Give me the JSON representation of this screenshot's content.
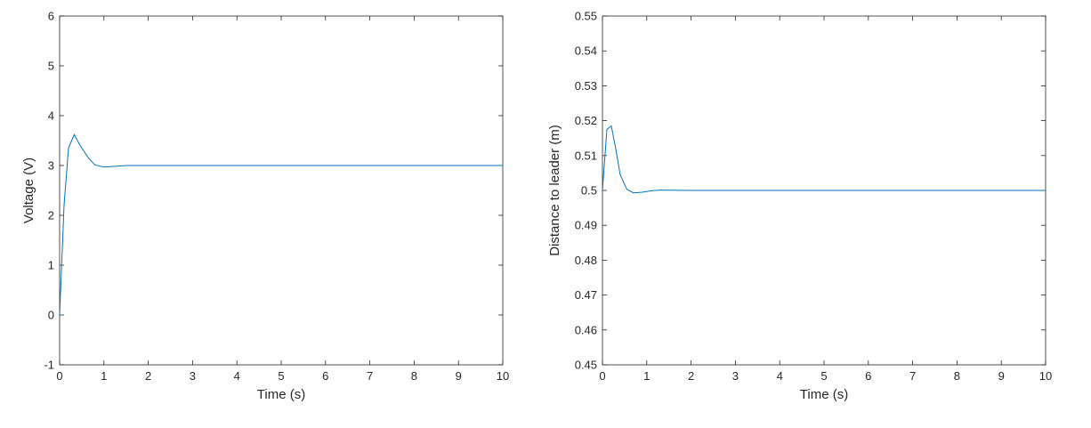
{
  "chart_data": [
    {
      "type": "line",
      "title": "",
      "xlabel": "Time (s)",
      "ylabel": "Voltage (V)",
      "xlim": [
        0,
        10
      ],
      "ylim": [
        -1,
        6
      ],
      "xticks": [
        "0",
        "1",
        "2",
        "3",
        "4",
        "5",
        "6",
        "7",
        "8",
        "9",
        "10"
      ],
      "yticks": [
        "-1",
        "0",
        "1",
        "2",
        "3",
        "4",
        "5",
        "6"
      ],
      "grid": false,
      "color": "#0072BD",
      "series": [
        {
          "x": [
            0,
            0.05,
            0.1,
            0.2,
            0.33,
            0.45,
            0.65,
            0.8,
            1.0,
            1.2,
            1.5,
            2.0,
            3.0,
            5.0,
            10.0
          ],
          "y": [
            0,
            1.1,
            2.2,
            3.35,
            3.62,
            3.42,
            3.15,
            3.01,
            2.97,
            2.98,
            3.0,
            3.0,
            3.0,
            3.0,
            3.0
          ]
        }
      ]
    },
    {
      "type": "line",
      "title": "",
      "xlabel": "Time (s)",
      "ylabel": "Distance to leader (m)",
      "xlim": [
        0,
        10
      ],
      "ylim": [
        0.45,
        0.55
      ],
      "xticks": [
        "0",
        "1",
        "2",
        "3",
        "4",
        "5",
        "6",
        "7",
        "8",
        "9",
        "10"
      ],
      "yticks": [
        "0.45",
        "0.46",
        "0.47",
        "0.48",
        "0.49",
        "0.5",
        "0.51",
        "0.52",
        "0.53",
        "0.54",
        "0.55"
      ],
      "grid": false,
      "color": "#0072BD",
      "series": [
        {
          "x": [
            0,
            0.1,
            0.2,
            0.3,
            0.4,
            0.55,
            0.7,
            0.9,
            1.1,
            1.3,
            2.0,
            5.0,
            10.0
          ],
          "y": [
            0.5,
            0.5175,
            0.5185,
            0.512,
            0.5045,
            0.5003,
            0.4993,
            0.4995,
            0.4999,
            0.5001,
            0.5,
            0.5,
            0.5
          ]
        }
      ]
    }
  ]
}
